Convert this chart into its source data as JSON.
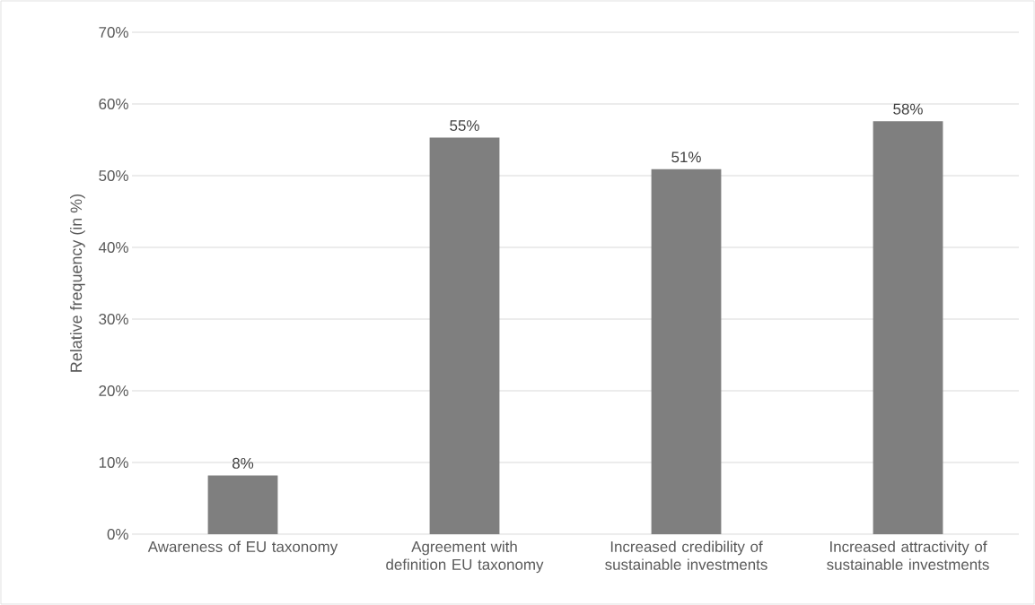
{
  "chart_data": {
    "type": "bar",
    "ylabel": "Relative frequency (in %)",
    "categories": [
      "Awareness of EU taxonomy",
      "Agreement with definition EU taxonomy",
      "Increased credibility of sustainable investments",
      "Increased attractivity of sustainable investments"
    ],
    "values": [
      8.2,
      55.3,
      50.9,
      57.6
    ],
    "value_labels": [
      "8%",
      "55%",
      "51%",
      "58%"
    ],
    "color": "#7f7f7f",
    "ylim": [
      0,
      70
    ],
    "yticks": [
      {
        "value": 0,
        "label": "0%"
      },
      {
        "value": 10,
        "label": "10%"
      },
      {
        "value": 20,
        "label": "20%"
      },
      {
        "value": 30,
        "label": "30%"
      },
      {
        "value": 40,
        "label": "40%"
      },
      {
        "value": 50,
        "label": "50%"
      },
      {
        "value": 60,
        "label": "60%"
      },
      {
        "value": 70,
        "label": "70%"
      }
    ],
    "grid": "y"
  }
}
